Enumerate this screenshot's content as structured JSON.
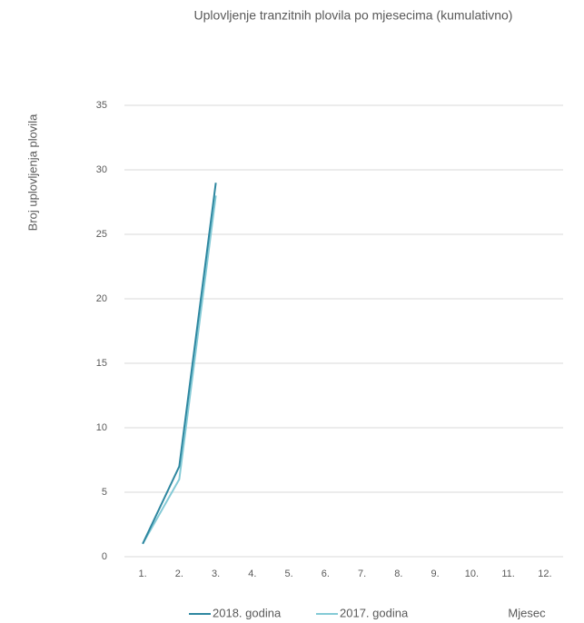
{
  "chart_data": {
    "type": "line",
    "title": "Uplovljenje tranzitnih plovila po mjesecima (kumulativno)",
    "y_label": "Broj uplovljenja  plovila",
    "x_label": "Mjesec",
    "categories": [
      "1.",
      "2.",
      "3.",
      "4.",
      "5.",
      "6.",
      "7.",
      "8.",
      "9.",
      "10.",
      "11.",
      "12."
    ],
    "series": [
      {
        "name": "2018. godina",
        "color": "#2e87a0",
        "values": [
          1,
          7,
          29,
          null,
          null,
          null,
          null,
          null,
          null,
          null,
          null,
          null
        ]
      },
      {
        "name": "2017. godina",
        "color": "#84cad6",
        "values": [
          1,
          6,
          28,
          null,
          null,
          null,
          null,
          null,
          null,
          null,
          null,
          null
        ]
      }
    ],
    "ylim": [
      0,
      35
    ],
    "yticks": [
      0,
      5,
      10,
      15,
      20,
      25,
      30,
      35
    ],
    "grid": true,
    "legend": "bottom"
  }
}
